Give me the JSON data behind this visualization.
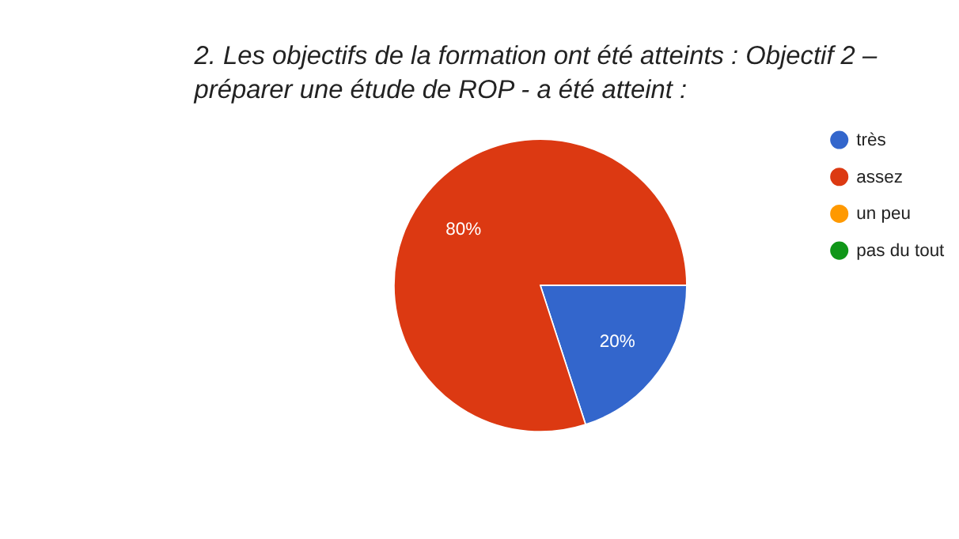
{
  "chart_data": {
    "type": "pie",
    "title": "2. Les objectifs de la formation ont été atteints : Objectif 2 –\npréparer une étude de ROP - a été atteint :",
    "categories": [
      "très",
      "assez",
      "un peu",
      "pas du tout"
    ],
    "values": [
      20,
      80,
      0,
      0
    ],
    "colors": [
      "#3366cc",
      "#dc3912",
      "#ff9900",
      "#109618"
    ],
    "value_labels": [
      "20%",
      "80%",
      null,
      null
    ],
    "legend": "top right"
  }
}
